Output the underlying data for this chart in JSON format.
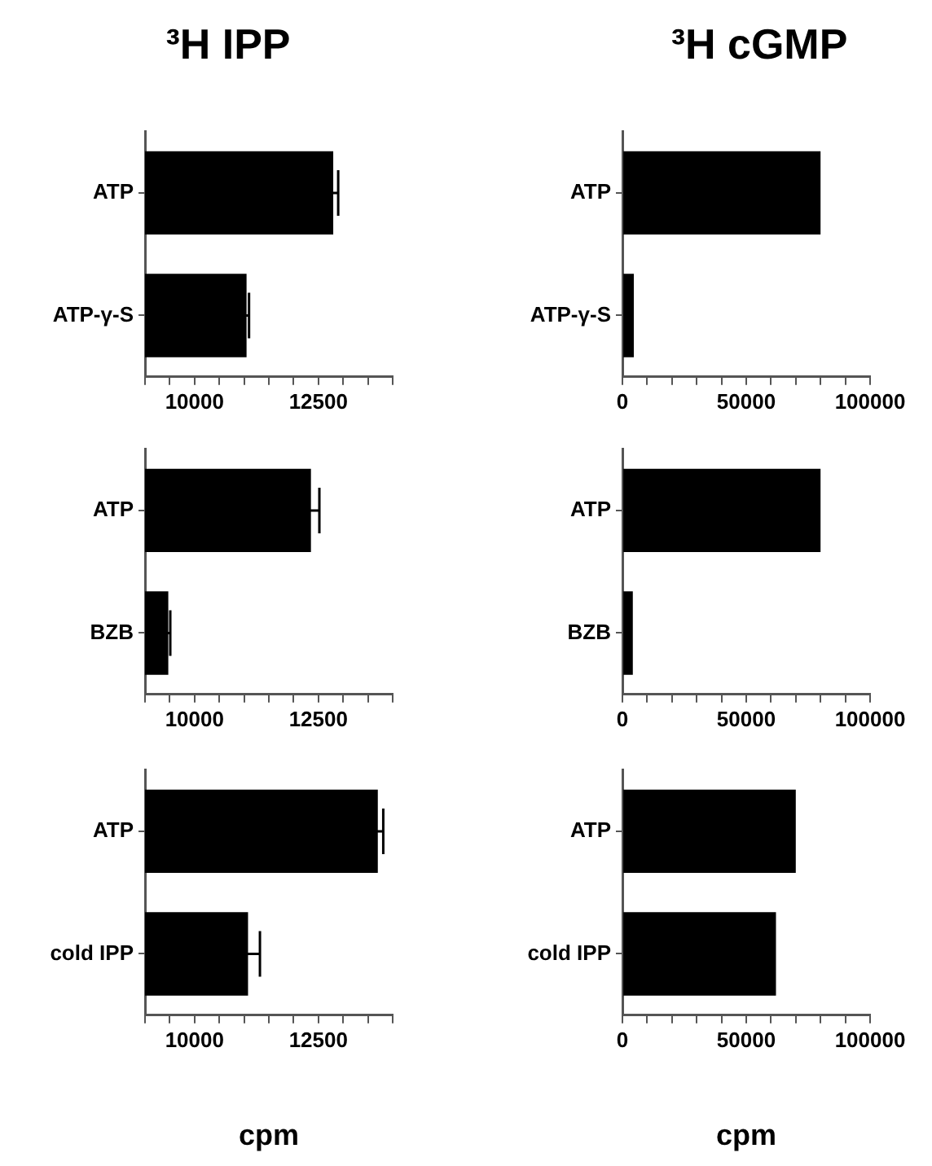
{
  "chart_data": [
    {
      "type": "bar",
      "orientation": "horizontal",
      "title": "³H IPP",
      "categories": [
        "ATP",
        "ATP-γ-S"
      ],
      "values": [
        12800,
        11050
      ],
      "errors": [
        100,
        50
      ],
      "color": "#000000",
      "xlim": [
        9000,
        14000
      ],
      "xticks": [
        {
          "value": 9000,
          "label": null
        },
        {
          "value": 9500,
          "label": null
        },
        10000,
        {
          "value": 10500,
          "label": null
        },
        {
          "value": 11000,
          "label": null
        },
        {
          "value": 11500,
          "label": null
        },
        {
          "value": 12000,
          "label": null
        },
        12500,
        {
          "value": 13000,
          "label": null
        },
        {
          "value": 13500,
          "label": null
        },
        {
          "value": 14000,
          "label": null
        }
      ]
    },
    {
      "type": "bar",
      "orientation": "horizontal",
      "title": "³H cGMP",
      "categories": [
        "ATP",
        "ATP-γ-S"
      ],
      "values": [
        80000,
        4600
      ],
      "color": "#000000",
      "xlim": [
        0,
        100000
      ],
      "xticks": [
        0,
        {
          "value": 10000,
          "label": null
        },
        {
          "value": 20000,
          "label": null
        },
        {
          "value": 30000,
          "label": null
        },
        {
          "value": 40000,
          "label": null
        },
        50000,
        {
          "value": 60000,
          "label": null
        },
        {
          "value": 70000,
          "label": null
        },
        {
          "value": 80000,
          "label": null
        },
        {
          "value": 90000,
          "label": null
        },
        100000
      ]
    },
    {
      "type": "bar",
      "orientation": "horizontal",
      "categories": [
        "ATP",
        "BZB"
      ],
      "values": [
        12350,
        9470
      ],
      "errors": [
        170,
        40
      ],
      "color": "#000000",
      "xlim": [
        9000,
        14000
      ],
      "xticks": [
        {
          "value": 9000,
          "label": null
        },
        {
          "value": 9500,
          "label": null
        },
        10000,
        {
          "value": 10500,
          "label": null
        },
        {
          "value": 11000,
          "label": null
        },
        {
          "value": 11500,
          "label": null
        },
        {
          "value": 12000,
          "label": null
        },
        12500,
        {
          "value": 13000,
          "label": null
        },
        {
          "value": 13500,
          "label": null
        },
        {
          "value": 14000,
          "label": null
        }
      ]
    },
    {
      "type": "bar",
      "orientation": "horizontal",
      "categories": [
        "ATP",
        "BZB"
      ],
      "values": [
        80000,
        4200
      ],
      "color": "#000000",
      "xlim": [
        0,
        100000
      ],
      "xticks": [
        0,
        {
          "value": 10000,
          "label": null
        },
        {
          "value": 20000,
          "label": null
        },
        {
          "value": 30000,
          "label": null
        },
        {
          "value": 40000,
          "label": null
        },
        50000,
        {
          "value": 60000,
          "label": null
        },
        {
          "value": 70000,
          "label": null
        },
        {
          "value": 80000,
          "label": null
        },
        {
          "value": 90000,
          "label": null
        },
        100000
      ]
    },
    {
      "type": "bar",
      "orientation": "horizontal",
      "xlabel": "cpm",
      "categories": [
        "ATP",
        "cold IPP"
      ],
      "values": [
        13700,
        11080
      ],
      "errors": [
        110,
        240
      ],
      "color": "#000000",
      "xlim": [
        9000,
        14000
      ],
      "xticks": [
        {
          "value": 9000,
          "label": null
        },
        {
          "value": 9500,
          "label": null
        },
        10000,
        {
          "value": 10500,
          "label": null
        },
        {
          "value": 11000,
          "label": null
        },
        {
          "value": 11500,
          "label": null
        },
        {
          "value": 12000,
          "label": null
        },
        12500,
        {
          "value": 13000,
          "label": null
        },
        {
          "value": 13500,
          "label": null
        },
        {
          "value": 14000,
          "label": null
        }
      ]
    },
    {
      "type": "bar",
      "orientation": "horizontal",
      "xlabel": "cpm",
      "categories": [
        "ATP",
        "cold IPP"
      ],
      "values": [
        70000,
        62000
      ],
      "color": "#000000",
      "xlim": [
        0,
        100000
      ],
      "xticks": [
        0,
        {
          "value": 10000,
          "label": null
        },
        {
          "value": 20000,
          "label": null
        },
        {
          "value": 30000,
          "label": null
        },
        {
          "value": 40000,
          "label": null
        },
        50000,
        {
          "value": 60000,
          "label": null
        },
        {
          "value": 70000,
          "label": null
        },
        {
          "value": 80000,
          "label": null
        },
        {
          "value": 90000,
          "label": null
        },
        100000
      ]
    }
  ]
}
